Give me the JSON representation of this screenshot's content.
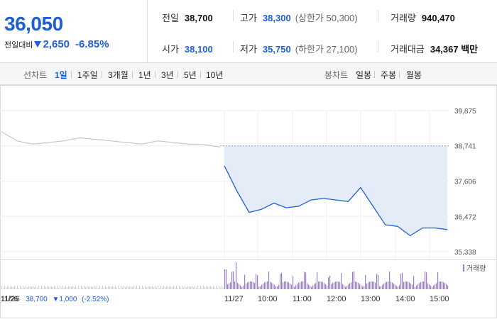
{
  "quote": {
    "price": "36,050",
    "change_label": "전일대비",
    "change_value": "2,650",
    "change_rate": "-6.85%",
    "direction": "down"
  },
  "stats": {
    "prev_close": {
      "label": "전일",
      "value": "38,700"
    },
    "high": {
      "label": "고가",
      "value": "38,300",
      "sub": "(상한가 50,300)"
    },
    "volume": {
      "label": "거래량",
      "value": "940,470"
    },
    "open": {
      "label": "시가",
      "value": "38,100"
    },
    "low": {
      "label": "저가",
      "value": "35,750",
      "sub": "(하한가 27,100)"
    },
    "trade_amount": {
      "label": "거래대금",
      "value": "34,367 백만"
    }
  },
  "period_tabs": {
    "title": "선차트",
    "items": [
      "1일",
      "1주일",
      "3개월",
      "1년",
      "3년",
      "5년",
      "10년"
    ],
    "active_index": 0
  },
  "candle_tabs": {
    "title": "봉차트",
    "items": [
      "일봉",
      "주봉",
      "월봉"
    ]
  },
  "colors": {
    "accent": "#1e5fd6",
    "prev_line": "#bdbdbd",
    "fill": "#e4ecf8",
    "volume": "#9b7fc0"
  },
  "chart_data": {
    "type": "line",
    "y_ticks": [
      "39,875",
      "38,741",
      "37,606",
      "36,472",
      "35,338"
    ],
    "ylim": [
      35338,
      39875
    ],
    "reference_line": 38741,
    "x_ticks": [
      "11/26",
      "11/27",
      "10:00",
      "11:00",
      "12:00",
      "13:00",
      "14:00",
      "15:00"
    ],
    "volume_legend": "거래량",
    "series": [
      {
        "x": [
          "11/26 09:00",
          "09:20",
          "09:40",
          "10:00",
          "10:30",
          "11:00",
          "11:30",
          "12:00",
          "12:30",
          "13:00",
          "13:30",
          "14:00",
          "14:30",
          "15:00",
          "15:20"
        ],
        "values": [
          39200,
          38900,
          38800,
          38850,
          38900,
          39000,
          38950,
          38900,
          38850,
          38800,
          38900,
          38850,
          38800,
          38780,
          38700
        ]
      },
      {
        "x": [
          "11/27 09:00",
          "09:10",
          "09:20",
          "09:40",
          "10:00",
          "10:30",
          "11:00",
          "11:30",
          "12:00",
          "12:30",
          "12:50",
          "13:00",
          "13:15",
          "13:30",
          "14:00",
          "14:20",
          "14:40",
          "15:00",
          "15:20"
        ],
        "values": [
          38100,
          37300,
          36600,
          36700,
          36900,
          36750,
          36800,
          37000,
          37050,
          37000,
          36950,
          37400,
          36800,
          36200,
          36150,
          35850,
          36100,
          36100,
          36050
        ]
      }
    ]
  },
  "bottom_info": {
    "date": "11/26",
    "close": "38,700",
    "change": "▼1,000",
    "rate": "(-2.52%)"
  }
}
